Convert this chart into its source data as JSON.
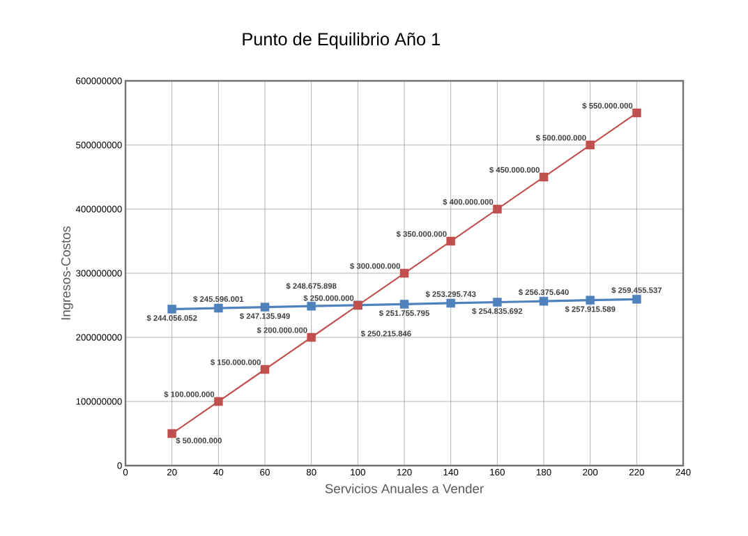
{
  "chart_data": {
    "type": "line",
    "title": "Punto de Equilibrio Año 1",
    "xlabel": "Servicios Anuales a Vender",
    "ylabel": "Ingresos-Costos",
    "x": [
      20,
      40,
      60,
      80,
      100,
      120,
      140,
      160,
      180,
      200,
      220
    ],
    "series": [
      {
        "color": "#4f81bd",
        "values": [
          244056052,
          245596001,
          247135949,
          248675898,
          250215846,
          251755795,
          253295743,
          254835692,
          256375640,
          257915589,
          259455537
        ],
        "value_labels": [
          "$ 244.056.052",
          "$ 245.596.001",
          "$ 247.135.949",
          "$ 248.675.898",
          "$ 250.215.846",
          "$ 251.755.795",
          "$ 253.295.743",
          "$ 254.835.692",
          "$ 256.375.640",
          "$ 257.915.589",
          "$ 259.455.537"
        ]
      },
      {
        "color": "#c0504d",
        "values": [
          50000000,
          100000000,
          150000000,
          200000000,
          250000000,
          300000000,
          350000000,
          400000000,
          450000000,
          500000000,
          550000000
        ],
        "value_labels": [
          "$ 50.000.000",
          "$ 100.000.000",
          "$ 150.000.000",
          "$ 200.000.000",
          "$ 250.000.000",
          "$ 300.000.000",
          "$ 350.000.000",
          "$ 400.000.000",
          "$ 450.000.000",
          "$ 500.000.000",
          "$ 550.000.000"
        ]
      }
    ],
    "xlim": [
      0,
      240
    ],
    "xticks": [
      0,
      20,
      40,
      60,
      80,
      100,
      120,
      140,
      160,
      180,
      200,
      220,
      240
    ],
    "ylim": [
      0,
      600000000
    ],
    "yticks": [
      0,
      100000000,
      200000000,
      300000000,
      400000000,
      500000000,
      600000000
    ],
    "grid": true,
    "marker": "square",
    "line_style": "solid"
  }
}
